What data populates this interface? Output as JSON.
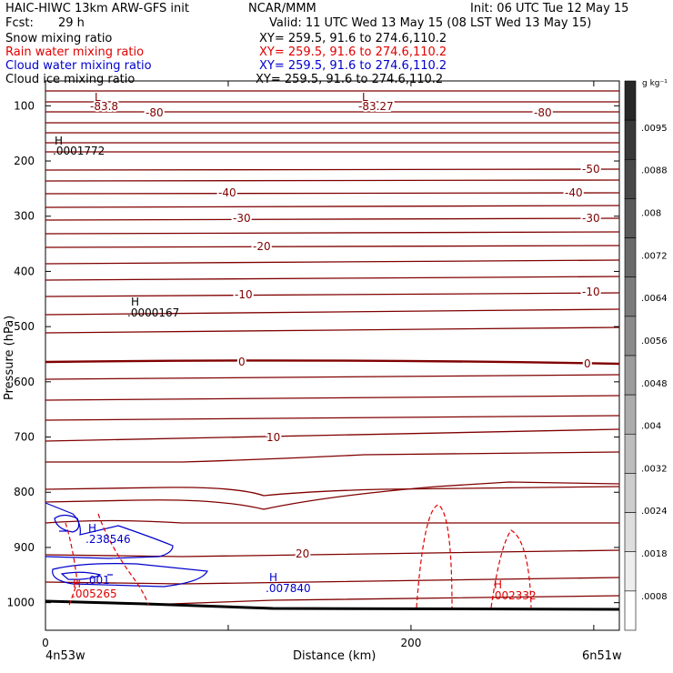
{
  "header": {
    "model": "HAIC-HIWC 13km ARW-GFS init",
    "org": "NCAR/MMM",
    "init": "Init: 06 UTC Tue 12 May 15",
    "fcst_label": "Fcst:",
    "fcst_value": "29 h",
    "valid": "Valid: 11 UTC Wed 13 May 15 (08 LST Wed 13 May 15)"
  },
  "fields": [
    {
      "label": "Snow mixing ratio",
      "xy": "XY= 259.5, 91.6 to 274.6,110.2",
      "color": "#000000"
    },
    {
      "label": "Rain water mixing ratio",
      "xy": "XY= 259.5, 91.6 to 274.6,110.2",
      "color": "#e00000"
    },
    {
      "label": "Cloud water mixing ratio",
      "xy": "XY= 259.5, 91.6 to 274.6,110.2",
      "color": "#0000cc"
    },
    {
      "label": "Cloud ice mixing ratio",
      "xy": "XY= 259.5, 91.6 to 274.6,110.2",
      "color": "#000000"
    }
  ],
  "chart_data": {
    "type": "line",
    "xlabel": "Distance (km)",
    "ylabel": "Pressure (hPa)",
    "xlim": [
      0,
      314
    ],
    "ylim": [
      1050,
      55
    ],
    "x_ticks": [
      0,
      100,
      200,
      300
    ],
    "x_tick_labels": [
      "0",
      "",
      "200",
      ""
    ],
    "y_ticks": [
      100,
      200,
      300,
      400,
      500,
      600,
      700,
      800,
      900,
      1000
    ],
    "x_end_labels": {
      "left": "4n53w",
      "right": "6n51w"
    },
    "colorbar": {
      "unit": "g kg⁻¹",
      "labels": [
        ".0095",
        ".0088",
        ".008",
        ".0072",
        ".0064",
        ".0056",
        ".0048",
        ".004",
        ".0032",
        ".0024",
        ".0018",
        ".0008"
      ]
    },
    "temperature_contours": [
      {
        "level": "-80",
        "labels": [
          "-83.8",
          "-80",
          "-83.27",
          "-80"
        ]
      },
      {
        "level": "-50",
        "labels": [
          "-50"
        ]
      },
      {
        "level": "-40",
        "labels": [
          "-40",
          "-40"
        ]
      },
      {
        "level": "-30",
        "labels": [
          "-30",
          "-30"
        ]
      },
      {
        "level": "-20",
        "labels": [
          "-20"
        ]
      },
      {
        "level": "-10",
        "labels": [
          "-10",
          "-10"
        ]
      },
      {
        "level": "0",
        "labels": [
          "0",
          "0"
        ]
      },
      {
        "level": "10",
        "labels": [
          "10"
        ]
      },
      {
        "level": "20",
        "labels": [
          "20"
        ]
      }
    ],
    "extrema": [
      {
        "mark": "L",
        "value": "-83.8",
        "color": "#800000"
      },
      {
        "mark": "L",
        "value": "-83.27",
        "color": "#800000"
      },
      {
        "mark": "H",
        "value": ".0001772",
        "color": "#000000"
      },
      {
        "mark": "H",
        "value": ".0000167",
        "color": "#000000"
      },
      {
        "mark": "H",
        "value": ".238546",
        "color": "#0000cc"
      },
      {
        "mark": "H",
        "value": ".001",
        "color": "#0000cc"
      },
      {
        "mark": "H",
        "value": ".007840",
        "color": "#0000cc"
      },
      {
        "mark": "H",
        "value": ".005265",
        "color": "#e00000"
      },
      {
        "mark": "H",
        "value": ".002332",
        "color": "#e00000"
      }
    ]
  },
  "colors": {
    "temperature": "#800000",
    "rain": "#e00000",
    "cloud_water": "#0000cc",
    "terrain": "#000000"
  }
}
